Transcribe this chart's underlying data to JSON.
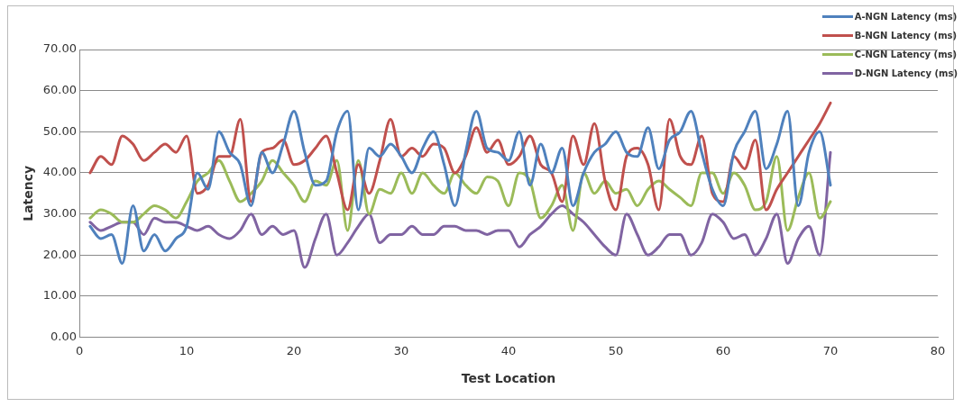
{
  "chart_data": {
    "type": "line",
    "xlabel": "Test Location",
    "ylabel": "Latency",
    "x": [
      1,
      2,
      3,
      4,
      5,
      6,
      7,
      8,
      9,
      10,
      11,
      12,
      13,
      14,
      15,
      16,
      17,
      18,
      19,
      20,
      21,
      22,
      23,
      24,
      25,
      26,
      27,
      28,
      29,
      30,
      31,
      32,
      33,
      34,
      35,
      36,
      37,
      38,
      39,
      40,
      41,
      42,
      43,
      44,
      45,
      46,
      47,
      48,
      49,
      50,
      51,
      52,
      53,
      54,
      55,
      56,
      57,
      58,
      59,
      60,
      61,
      62,
      63,
      64,
      65,
      66,
      67,
      68,
      69,
      70
    ],
    "series": [
      {
        "name": "A-NGN Latency (ms)",
        "color": "#4f81bd",
        "values": [
          27,
          24,
          25,
          18,
          32,
          21,
          25,
          21,
          24,
          27,
          40,
          36,
          50,
          45,
          42,
          32,
          45,
          40,
          47,
          55,
          45,
          37,
          38,
          50,
          55,
          31,
          46,
          44,
          47,
          44,
          40,
          46,
          50,
          42,
          32,
          45,
          55,
          46,
          45,
          43,
          50,
          37,
          47,
          40,
          46,
          32,
          40,
          45,
          47,
          50,
          45,
          44,
          51,
          41,
          48,
          50,
          55,
          45,
          36,
          32,
          45,
          50,
          55,
          41,
          47,
          55,
          32,
          45,
          50,
          37
        ]
      },
      {
        "name": "B-NGN Latency (ms)",
        "color": "#c0504d",
        "values": [
          40,
          44,
          42,
          49,
          47,
          43,
          45,
          47,
          45,
          49,
          35,
          37,
          44,
          44,
          53,
          33,
          45,
          46,
          48,
          42,
          43,
          46,
          49,
          40,
          31,
          42,
          35,
          43,
          53,
          44,
          46,
          44,
          47,
          46,
          40,
          44,
          51,
          45,
          48,
          42,
          44,
          49,
          42,
          40,
          33,
          49,
          42,
          52,
          38,
          31,
          44,
          46,
          42,
          31,
          53,
          44,
          42,
          49,
          35,
          33,
          44,
          41,
          48,
          31,
          36,
          40,
          44,
          48,
          52,
          57
        ]
      },
      {
        "name": "C-NGN Latency (ms)",
        "color": "#9bbb59",
        "values": [
          29,
          31,
          30,
          28,
          28,
          30,
          32,
          31,
          29,
          33,
          38,
          40,
          43,
          38,
          33,
          35,
          38,
          43,
          40,
          37,
          33,
          38,
          37,
          43,
          26,
          43,
          30,
          36,
          35,
          40,
          35,
          40,
          37,
          35,
          40,
          37,
          35,
          39,
          38,
          32,
          40,
          38,
          29,
          32,
          37,
          26,
          40,
          35,
          38,
          35,
          36,
          32,
          36,
          38,
          36,
          34,
          32,
          40,
          40,
          35,
          40,
          37,
          31,
          33,
          44,
          26,
          34,
          40,
          29,
          33
        ]
      },
      {
        "name": "D-NGN Latency (ms)",
        "color": "#8064a2",
        "values": [
          28,
          26,
          27,
          28,
          28,
          25,
          29,
          28,
          28,
          27,
          26,
          27,
          25,
          24,
          26,
          30,
          25,
          27,
          25,
          26,
          17,
          24,
          30,
          20,
          23,
          27,
          30,
          23,
          25,
          25,
          27,
          25,
          25,
          27,
          27,
          26,
          26,
          25,
          26,
          26,
          22,
          25,
          27,
          30,
          32,
          30,
          28,
          25,
          22,
          20,
          30,
          25,
          20,
          22,
          25,
          25,
          20,
          23,
          30,
          28,
          24,
          25,
          20,
          24,
          30,
          18,
          24,
          27,
          20,
          45
        ]
      }
    ],
    "xlim": [
      0,
      80
    ],
    "xticks": [
      0,
      10,
      20,
      30,
      40,
      50,
      60,
      70,
      80
    ],
    "ylim": [
      0,
      70
    ],
    "yticks": [
      {
        "value": 0,
        "label": "0.00"
      },
      {
        "value": 10,
        "label": "10.00"
      },
      {
        "value": 20,
        "label": "20.00"
      },
      {
        "value": 30,
        "label": "30.00"
      },
      {
        "value": 40,
        "label": "40.00"
      },
      {
        "value": 50,
        "label": "50.00"
      },
      {
        "value": 60,
        "label": "60.00"
      },
      {
        "value": 70,
        "label": "70.00"
      }
    ],
    "grid": "y",
    "legend": "top right",
    "marker": "none",
    "line_style": "solid"
  }
}
